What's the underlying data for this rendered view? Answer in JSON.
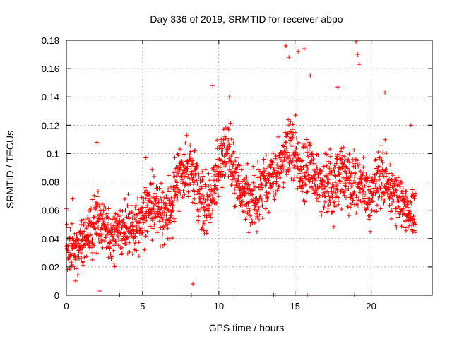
{
  "chart_data": {
    "type": "scatter",
    "title": "Day 336 of 2019, SRMTID for receiver abpo",
    "xlabel": "GPS time / hours",
    "ylabel": "SRMTID / TECUs",
    "xlim": [
      0,
      24
    ],
    "ylim": [
      0,
      0.18
    ],
    "grid": true,
    "marker": "+",
    "color": "#ff0000",
    "x_ticks": [
      0,
      5,
      10,
      15,
      20
    ],
    "x_tick_labels": [
      "0",
      "5",
      "10",
      "15",
      "20"
    ],
    "y_ticks": [
      0,
      0.02,
      0.04,
      0.06,
      0.08,
      0.1,
      0.12,
      0.14,
      0.16,
      0.18
    ],
    "y_tick_labels": [
      "0",
      "0.02",
      "0.04",
      "0.06",
      "0.08",
      "0.1",
      "0.12",
      "0.14",
      "0.16",
      "0.18"
    ],
    "series": [
      {
        "name": "SRMTID",
        "trend": [
          [
            0.0,
            0.035
          ],
          [
            0.5,
            0.03
          ],
          [
            1.0,
            0.038
          ],
          [
            1.5,
            0.045
          ],
          [
            2.0,
            0.055
          ],
          [
            2.5,
            0.048
          ],
          [
            3.0,
            0.042
          ],
          [
            3.5,
            0.047
          ],
          [
            4.0,
            0.05
          ],
          [
            4.5,
            0.045
          ],
          [
            5.0,
            0.055
          ],
          [
            5.5,
            0.062
          ],
          [
            6.0,
            0.06
          ],
          [
            6.5,
            0.055
          ],
          [
            7.0,
            0.068
          ],
          [
            7.5,
            0.09
          ],
          [
            8.0,
            0.088
          ],
          [
            8.5,
            0.08
          ],
          [
            9.0,
            0.06
          ],
          [
            9.5,
            0.07
          ],
          [
            10.0,
            0.092
          ],
          [
            10.5,
            0.105
          ],
          [
            11.0,
            0.085
          ],
          [
            11.5,
            0.072
          ],
          [
            12.0,
            0.068
          ],
          [
            12.5,
            0.065
          ],
          [
            13.0,
            0.08
          ],
          [
            13.5,
            0.088
          ],
          [
            14.0,
            0.088
          ],
          [
            14.5,
            0.105
          ],
          [
            15.0,
            0.098
          ],
          [
            15.5,
            0.085
          ],
          [
            16.0,
            0.09
          ],
          [
            16.5,
            0.08
          ],
          [
            17.0,
            0.078
          ],
          [
            17.5,
            0.078
          ],
          [
            18.0,
            0.085
          ],
          [
            18.5,
            0.08
          ],
          [
            19.0,
            0.08
          ],
          [
            19.5,
            0.075
          ],
          [
            20.0,
            0.07
          ],
          [
            20.5,
            0.085
          ],
          [
            21.0,
            0.08
          ],
          [
            21.5,
            0.07
          ],
          [
            22.0,
            0.065
          ],
          [
            22.5,
            0.06
          ],
          [
            22.9,
            0.06
          ]
        ],
        "spread": 0.022,
        "sample_step_hours": 0.012,
        "outliers": [
          [
            0.4,
            0.068
          ],
          [
            0.6,
            0.01
          ],
          [
            2.0,
            0.108
          ],
          [
            2.2,
            0.003
          ],
          [
            5.2,
            0.097
          ],
          [
            8.3,
            0.008
          ],
          [
            9.6,
            0.148
          ],
          [
            10.7,
            0.14
          ],
          [
            14.4,
            0.176
          ],
          [
            14.6,
            0.168
          ],
          [
            15.2,
            0.172
          ],
          [
            15.6,
            0.174
          ],
          [
            16.0,
            0.155
          ],
          [
            17.8,
            0.147
          ],
          [
            19.0,
            0.179
          ],
          [
            19.1,
            0.17
          ],
          [
            19.2,
            0.163
          ],
          [
            20.9,
            0.143
          ],
          [
            22.6,
            0.12
          ]
        ],
        "zeros": [
          3.5,
          8.2,
          11.0,
          13.6,
          13.7,
          15.8,
          18.9
        ]
      }
    ]
  }
}
